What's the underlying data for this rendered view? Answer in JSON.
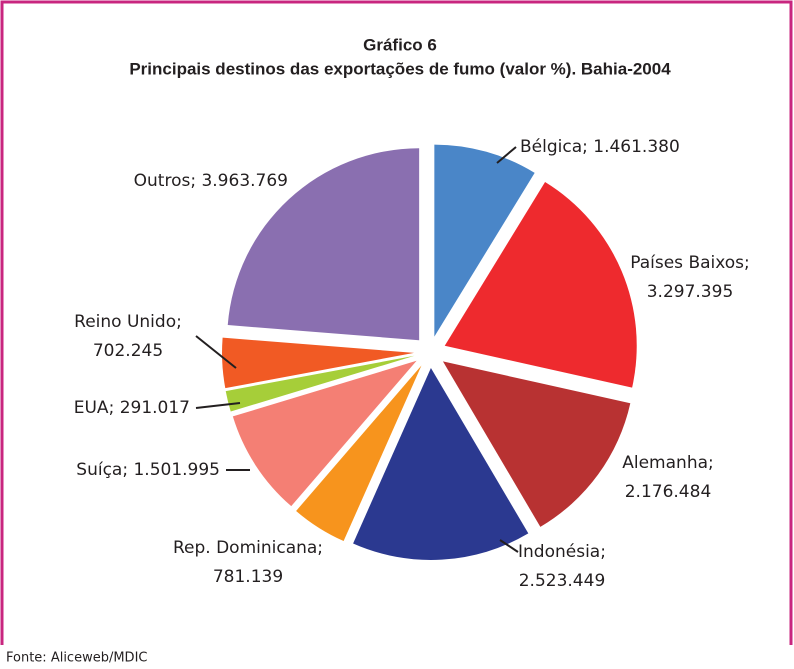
{
  "chart_data": {
    "type": "pie",
    "title": "Gráfico 6",
    "subtitle": "Principais destinos das exportações de fumo (valor %). Bahia-2004",
    "categories": [
      "Bélgica",
      "Países Baixos",
      "Alemanha",
      "Indonésia",
      "Rep. Dominicana",
      "Suíça",
      "EUA",
      "Reino Unido",
      "Outros"
    ],
    "values": [
      1461380,
      3297395,
      2176484,
      2523449,
      781139,
      1501995,
      291017,
      702245,
      3963769
    ],
    "value_labels": [
      [
        "Bélgica; 1.461.380"
      ],
      [
        "Países Baixos;",
        "3.297.395"
      ],
      [
        "Alemanha;",
        "2.176.484"
      ],
      [
        "Indonésia;",
        "2.523.449"
      ],
      [
        "Rep. Dominicana;",
        "781.139"
      ],
      [
        "Suíça; 1.501.995"
      ],
      [
        "EUA; 291.017"
      ],
      [
        "Reino Unido;",
        "702.245"
      ],
      [
        "Outros; 3.963.769"
      ]
    ],
    "colors": [
      "#4a86c8",
      "#ee2a2e",
      "#b83232",
      "#2b3990",
      "#f7941d",
      "#f47f74",
      "#a6ce39",
      "#f15a24",
      "#8a6fb0"
    ],
    "source": "Fonte: Aliceweb/MDIC"
  }
}
